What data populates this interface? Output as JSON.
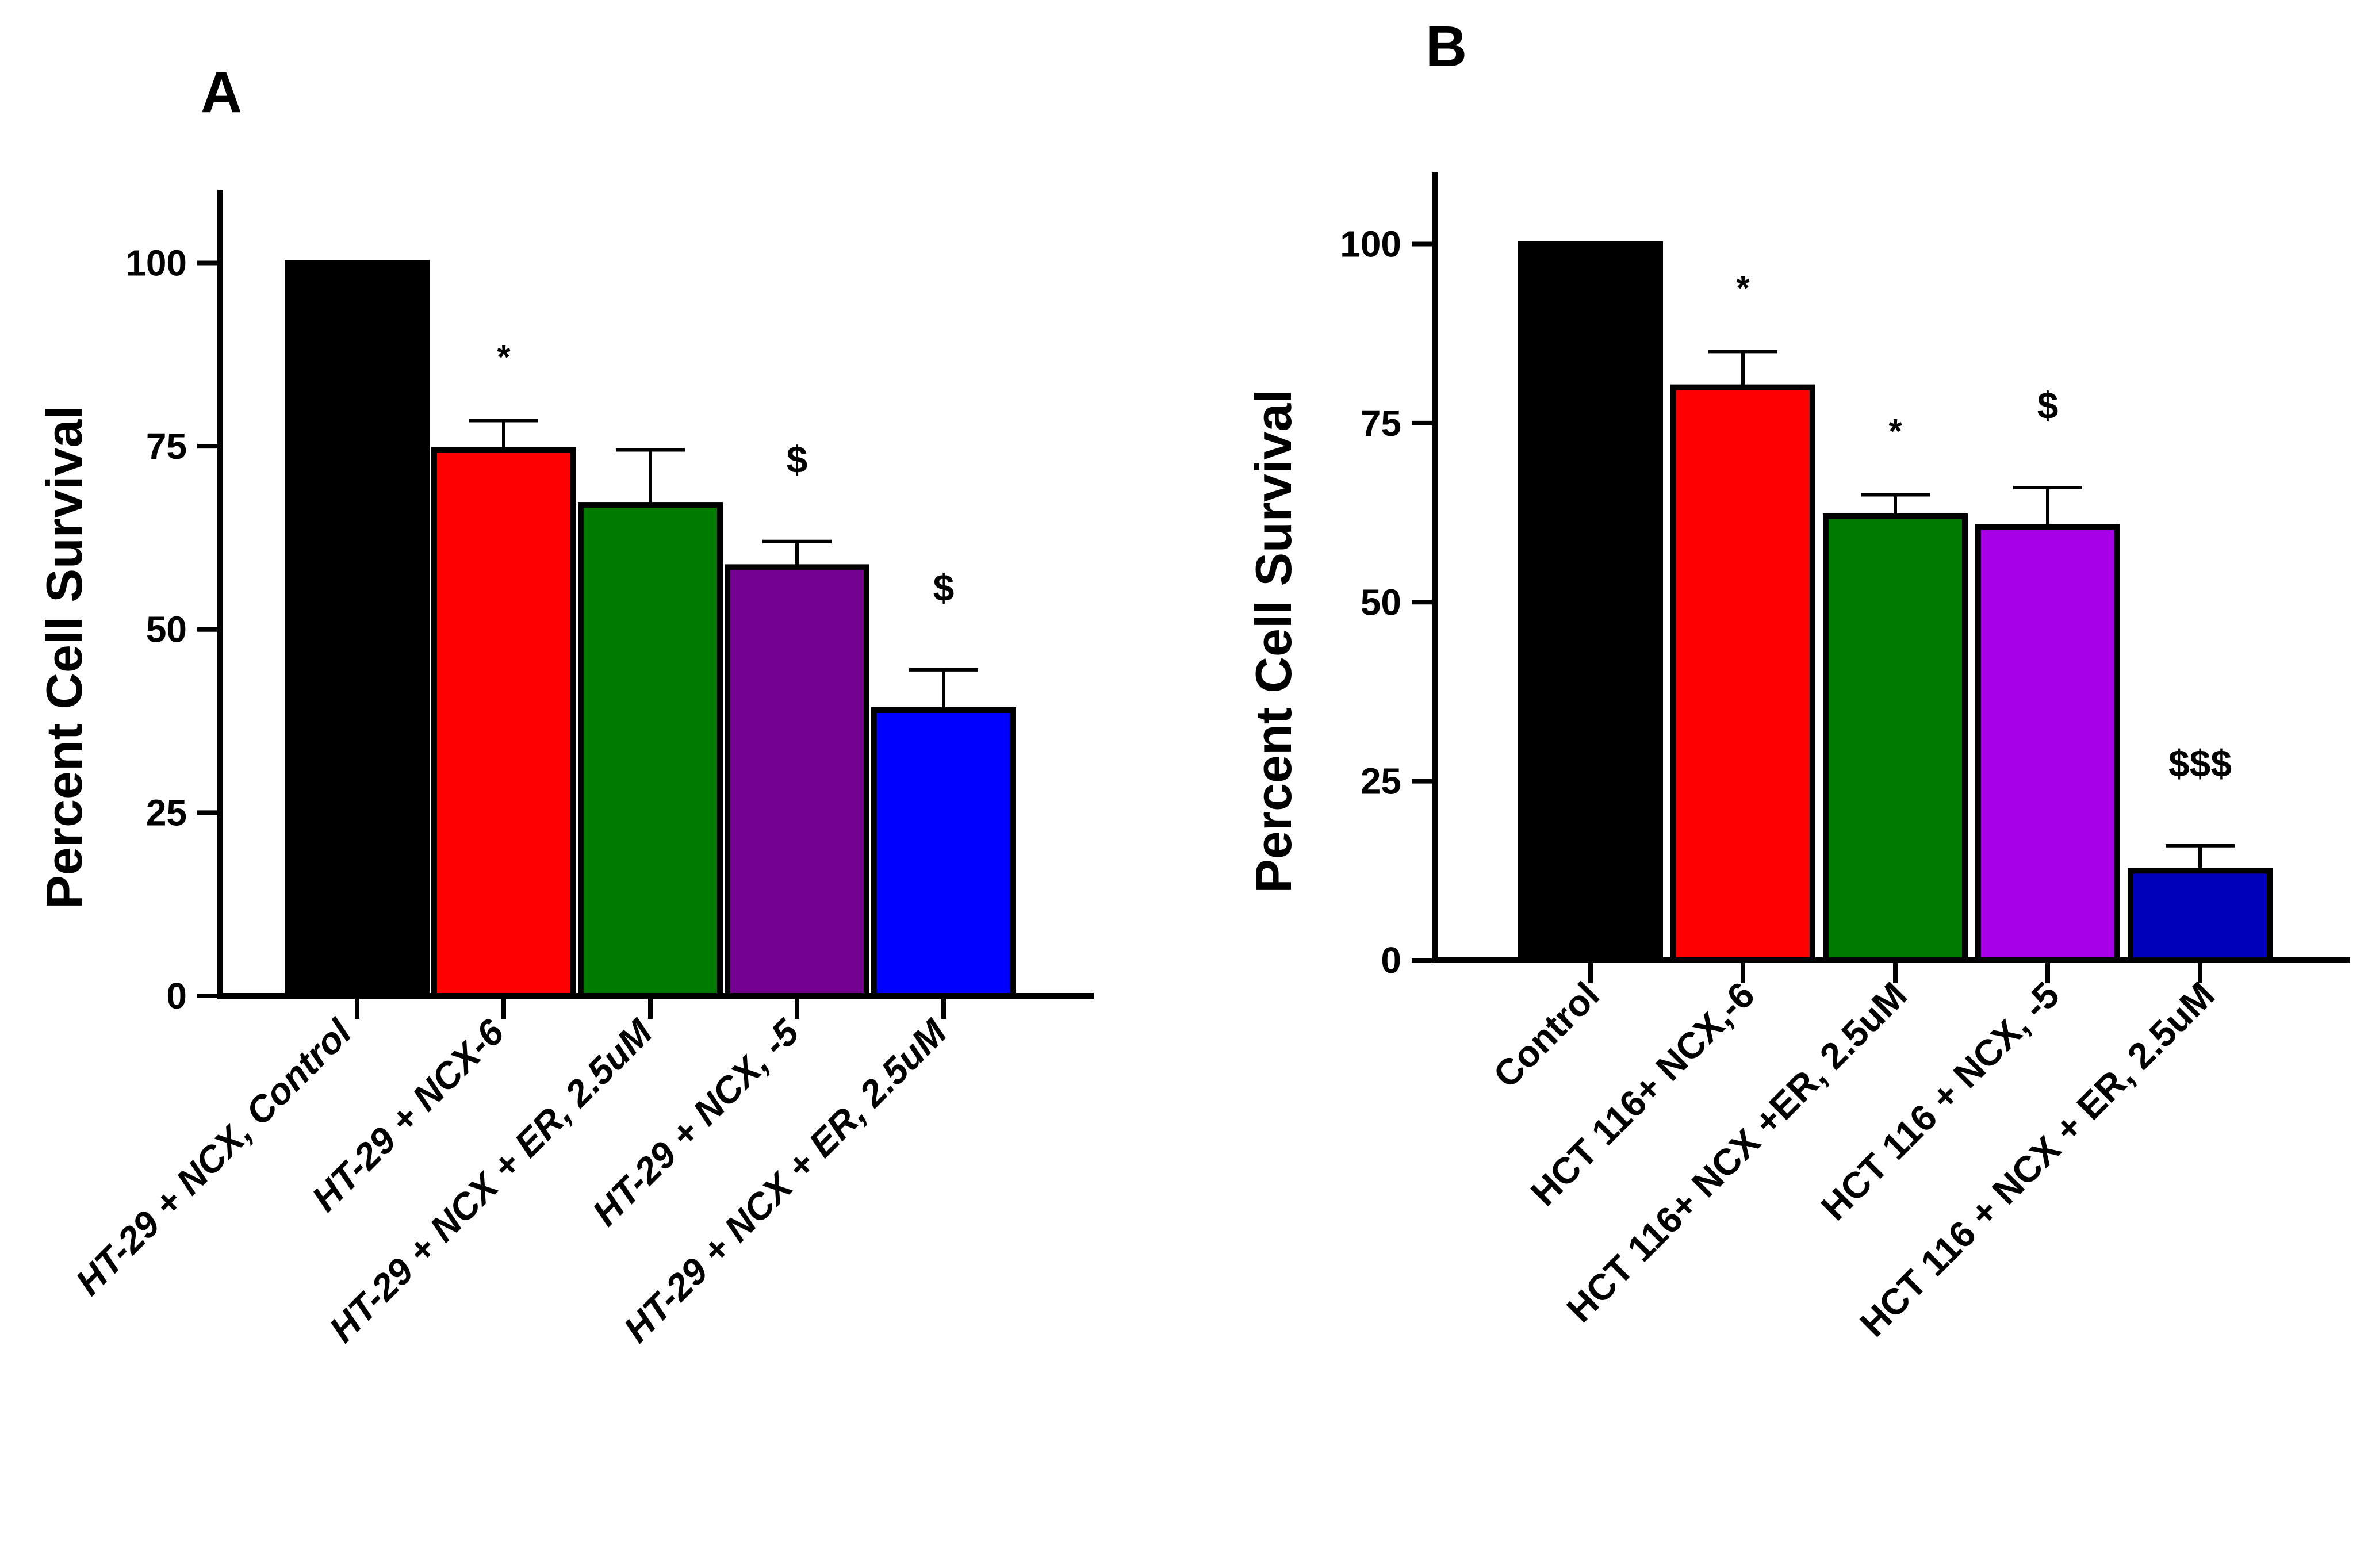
{
  "chart_data": [
    {
      "type": "bar",
      "panel_label": "A",
      "title": "",
      "xlabel": "",
      "ylabel": "Percent Cell Survival",
      "ylim": [
        0,
        110
      ],
      "yticks": [
        0,
        25,
        50,
        75,
        100
      ],
      "grid": false,
      "categories": [
        "HT-29 + NCX, Control",
        "HT-29 + NCX-6",
        "HT-29 + NCX + ER, 2.5uM",
        "HT-29 + NCX, -5",
        "HT-29 + NCX + ER, 2.5uM"
      ],
      "values": [
        100,
        74.5,
        67,
        58.5,
        39
      ],
      "errors": [
        0,
        4,
        7.5,
        3.5,
        5.5
      ],
      "colors": [
        "#000000",
        "#ff0000",
        "#007a00",
        "#74008f",
        "#0000ff"
      ],
      "annotations": [
        "",
        "*",
        "",
        "$",
        "$"
      ]
    },
    {
      "type": "bar",
      "panel_label": "B",
      "title": "",
      "xlabel": "",
      "ylabel": "Percent Cell Survival",
      "ylim": [
        0,
        110
      ],
      "yticks": [
        0,
        25,
        50,
        75,
        100
      ],
      "grid": false,
      "categories": [
        "Control",
        "HCT 116+ NCX,-6",
        "HCT 116+ NCX +ER, 2.5uM",
        "HCT 116 + NCX, -5",
        "HCT 116 + NCX + ER, 2.5uM"
      ],
      "values": [
        100,
        80,
        62,
        60.5,
        12.5
      ],
      "errors": [
        0,
        5,
        3,
        5.5,
        3.5
      ],
      "colors": [
        "#000000",
        "#ff0000",
        "#007a00",
        "#a800e6",
        "#0000b8"
      ],
      "annotations": [
        "",
        "*",
        "*",
        "$",
        "$$$"
      ]
    }
  ]
}
